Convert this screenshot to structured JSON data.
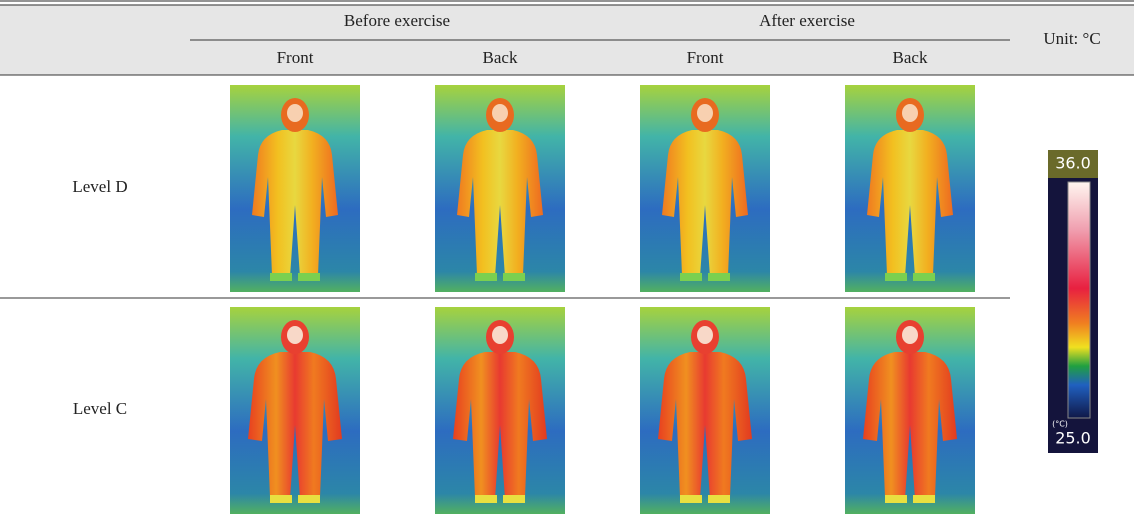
{
  "table": {
    "header": {
      "groups": [
        "Before exercise",
        "After exercise"
      ],
      "columns": [
        "Front",
        "Back",
        "Front",
        "Back"
      ],
      "unit": "Unit: °C"
    },
    "rows": [
      {
        "label": "Level D"
      },
      {
        "label": "Level C"
      }
    ]
  },
  "scale": {
    "max": "36.0",
    "min": "25.0",
    "unit": "(°C)"
  }
}
